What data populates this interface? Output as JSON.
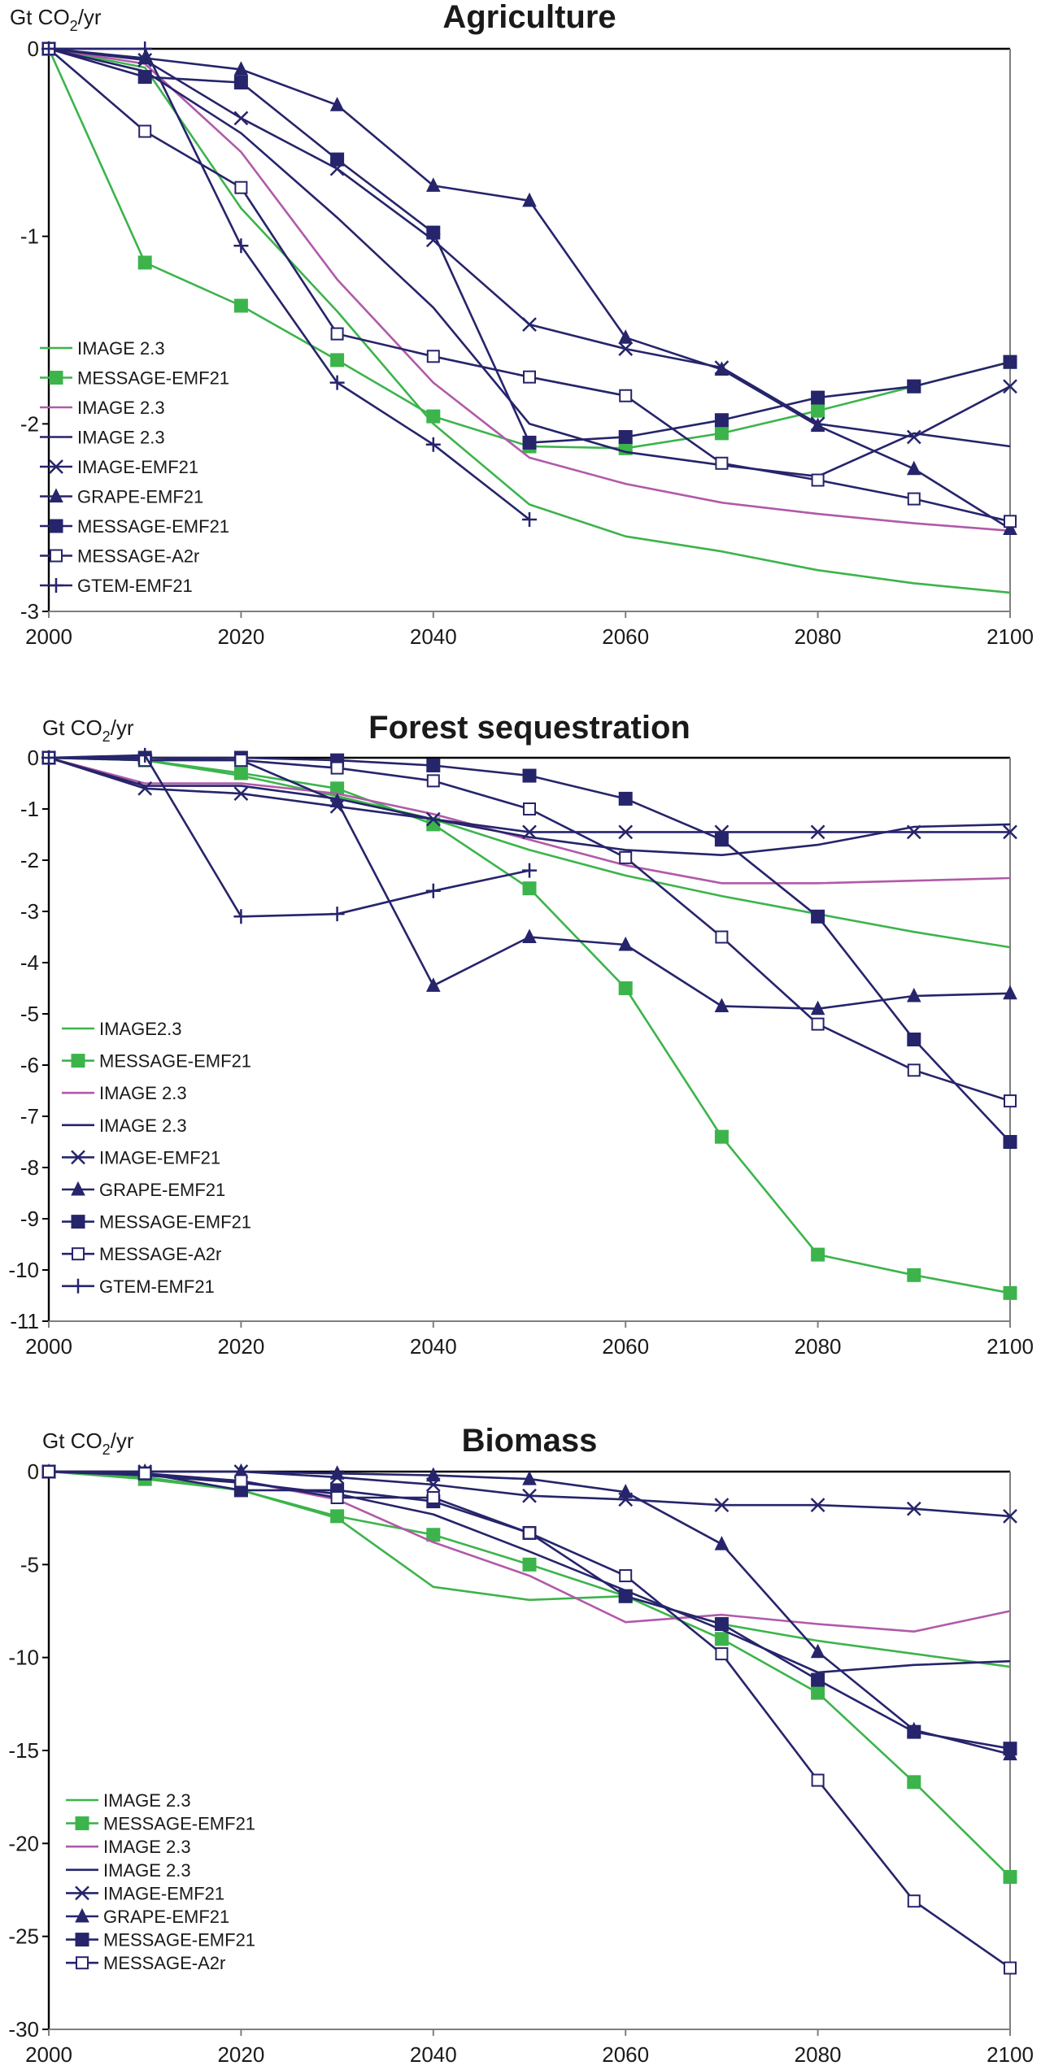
{
  "colors": {
    "green": "#3cb44b",
    "purple": "#b15aa8",
    "navy": "#26246b"
  },
  "chart_data": [
    {
      "type": "line",
      "title": "Agriculture",
      "unit_main": "Gt CO",
      "unit_sub": "2",
      "unit_tail": "/yr",
      "xlim": [
        2000,
        2100
      ],
      "ylim": [
        -3,
        0
      ],
      "xticks": [
        2000,
        2020,
        2040,
        2060,
        2080,
        2100
      ],
      "yticks": [
        0,
        -1,
        -2,
        -3
      ],
      "legend_position": "bottom-left",
      "series": [
        {
          "name": "IMAGE 2.3",
          "color": "#3cb44b",
          "marker": "none",
          "x": [
            2000,
            2010,
            2020,
            2030,
            2040,
            2050,
            2060,
            2070,
            2080,
            2090,
            2100
          ],
          "y": [
            0,
            -0.1,
            -0.85,
            -1.4,
            -2.0,
            -2.43,
            -2.6,
            -2.68,
            -2.78,
            -2.85,
            -2.9
          ]
        },
        {
          "name": "MESSAGE-EMF21",
          "color": "#3cb44b",
          "marker": "filled-square",
          "x": [
            2000,
            2010,
            2020,
            2030,
            2040,
            2050,
            2060,
            2070,
            2080,
            2090,
            2100
          ],
          "y": [
            0,
            -1.14,
            -1.37,
            -1.66,
            -1.96,
            -2.12,
            -2.13,
            -2.05,
            -1.93,
            -1.8,
            -1.67
          ]
        },
        {
          "name": "IMAGE 2.3",
          "color": "#b15aa8",
          "marker": "none",
          "x": [
            2000,
            2010,
            2020,
            2030,
            2040,
            2050,
            2060,
            2070,
            2080,
            2090,
            2100
          ],
          "y": [
            0,
            -0.08,
            -0.55,
            -1.23,
            -1.78,
            -2.18,
            -2.32,
            -2.42,
            -2.48,
            -2.53,
            -2.57
          ]
        },
        {
          "name": "IMAGE 2.3",
          "color": "#26246b",
          "marker": "none",
          "x": [
            2000,
            2010,
            2020,
            2030,
            2040,
            2050,
            2060,
            2070,
            2080,
            2090,
            2100
          ],
          "y": [
            0,
            -0.12,
            -0.45,
            -0.9,
            -1.38,
            -2.0,
            -2.15,
            -2.22,
            -2.28,
            -2.05,
            -2.12
          ]
        },
        {
          "name": "IMAGE-EMF21",
          "color": "#26246b",
          "marker": "x",
          "x": [
            2000,
            2010,
            2020,
            2030,
            2040,
            2050,
            2060,
            2070,
            2080,
            2090,
            2100
          ],
          "y": [
            0,
            -0.06,
            -0.37,
            -0.64,
            -1.02,
            -1.47,
            -1.6,
            -1.7,
            -2.0,
            -2.07,
            -1.8
          ]
        },
        {
          "name": "GRAPE-EMF21",
          "color": "#26246b",
          "marker": "filled-triangle",
          "x": [
            2000,
            2010,
            2020,
            2030,
            2040,
            2050,
            2060,
            2070,
            2080,
            2090,
            2100
          ],
          "y": [
            0,
            -0.05,
            -0.11,
            -0.3,
            -0.73,
            -0.81,
            -1.54,
            -1.71,
            -2.01,
            -2.24,
            -2.56
          ]
        },
        {
          "name": "MESSAGE-EMF21",
          "color": "#26246b",
          "marker": "filled-square",
          "x": [
            2000,
            2010,
            2020,
            2030,
            2040,
            2050,
            2060,
            2070,
            2080,
            2090,
            2100
          ],
          "y": [
            0,
            -0.15,
            -0.18,
            -0.59,
            -0.98,
            -2.1,
            -2.07,
            -1.98,
            -1.86,
            -1.8,
            -1.67
          ]
        },
        {
          "name": "MESSAGE-A2r",
          "color": "#26246b",
          "marker": "open-square",
          "x": [
            2000,
            2010,
            2020,
            2030,
            2040,
            2050,
            2060,
            2070,
            2080,
            2090,
            2100
          ],
          "y": [
            0,
            -0.44,
            -0.74,
            -1.52,
            -1.64,
            -1.75,
            -1.85,
            -2.21,
            -2.3,
            -2.4,
            -2.52
          ]
        },
        {
          "name": "GTEM-EMF21",
          "color": "#26246b",
          "marker": "plus",
          "x": [
            2000,
            2010,
            2020,
            2030,
            2040,
            2050
          ],
          "y": [
            0,
            0,
            -1.05,
            -1.78,
            -2.11,
            -2.51
          ]
        }
      ]
    },
    {
      "type": "line",
      "title": "Forest sequestration",
      "unit_main": "Gt CO",
      "unit_sub": "2",
      "unit_tail": "/yr",
      "xlim": [
        2000,
        2100
      ],
      "ylim": [
        -11,
        0
      ],
      "xticks": [
        2000,
        2020,
        2040,
        2060,
        2080,
        2100
      ],
      "yticks": [
        0,
        -1,
        -2,
        -3,
        -4,
        -5,
        -6,
        -7,
        -8,
        -9,
        -10,
        -11
      ],
      "legend_position": "bottom-left",
      "series": [
        {
          "name": "IMAGE2.3",
          "color": "#3cb44b",
          "marker": "none",
          "x": [
            2000,
            2010,
            2020,
            2030,
            2040,
            2050,
            2060,
            2070,
            2080,
            2090,
            2100
          ],
          "y": [
            0,
            -0.05,
            -0.35,
            -0.75,
            -1.2,
            -1.8,
            -2.3,
            -2.7,
            -3.05,
            -3.4,
            -3.7
          ]
        },
        {
          "name": "MESSAGE-EMF21",
          "color": "#3cb44b",
          "marker": "filled-square",
          "x": [
            2000,
            2010,
            2020,
            2030,
            2040,
            2050,
            2060,
            2070,
            2080,
            2090,
            2100
          ],
          "y": [
            0,
            -0.05,
            -0.3,
            -0.6,
            -1.3,
            -2.55,
            -4.5,
            -7.4,
            -9.7,
            -10.1,
            -10.45
          ]
        },
        {
          "name": "IMAGE 2.3",
          "color": "#b15aa8",
          "marker": "none",
          "x": [
            2000,
            2010,
            2020,
            2030,
            2040,
            2050,
            2060,
            2070,
            2080,
            2090,
            2100
          ],
          "y": [
            0,
            -0.5,
            -0.5,
            -0.7,
            -1.1,
            -1.6,
            -2.1,
            -2.45,
            -2.45,
            -2.4,
            -2.35
          ]
        },
        {
          "name": "IMAGE 2.3",
          "color": "#26246b",
          "marker": "none",
          "x": [
            2000,
            2010,
            2020,
            2030,
            2040,
            2050,
            2060,
            2070,
            2080,
            2090,
            2100
          ],
          "y": [
            0,
            -0.55,
            -0.55,
            -0.8,
            -1.2,
            -1.55,
            -1.8,
            -1.9,
            -1.7,
            -1.35,
            -1.3
          ]
        },
        {
          "name": "IMAGE-EMF21",
          "color": "#26246b",
          "marker": "x",
          "x": [
            2000,
            2010,
            2020,
            2030,
            2040,
            2050,
            2060,
            2070,
            2080,
            2090,
            2100
          ],
          "y": [
            0,
            -0.6,
            -0.7,
            -0.95,
            -1.2,
            -1.45,
            -1.45,
            -1.45,
            -1.45,
            -1.45,
            -1.45
          ]
        },
        {
          "name": "GRAPE-EMF21",
          "color": "#26246b",
          "marker": "filled-triangle",
          "x": [
            2000,
            2010,
            2020,
            2030,
            2040,
            2050,
            2060,
            2070,
            2080,
            2090,
            2100
          ],
          "y": [
            0,
            0,
            -0.05,
            -0.85,
            -4.45,
            -3.5,
            -3.65,
            -4.85,
            -4.9,
            -4.65,
            -4.6
          ]
        },
        {
          "name": "MESSAGE-EMF21",
          "color": "#26246b",
          "marker": "filled-square",
          "x": [
            2000,
            2010,
            2020,
            2030,
            2040,
            2050,
            2060,
            2070,
            2080,
            2090,
            2100
          ],
          "y": [
            0,
            0,
            0,
            -0.05,
            -0.15,
            -0.35,
            -0.8,
            -1.6,
            -3.1,
            -5.5,
            -7.5
          ]
        },
        {
          "name": "MESSAGE-A2r",
          "color": "#26246b",
          "marker": "open-square",
          "x": [
            2000,
            2010,
            2020,
            2030,
            2040,
            2050,
            2060,
            2070,
            2080,
            2090,
            2100
          ],
          "y": [
            0,
            -0.05,
            -0.05,
            -0.2,
            -0.45,
            -1.0,
            -1.95,
            -3.5,
            -5.2,
            -6.1,
            -6.7
          ]
        },
        {
          "name": "GTEM-EMF21",
          "color": "#26246b",
          "marker": "plus",
          "x": [
            2000,
            2010,
            2020,
            2030,
            2040,
            2050
          ],
          "y": [
            0,
            0.05,
            -3.1,
            -3.05,
            -2.6,
            -2.2
          ]
        }
      ]
    },
    {
      "type": "line",
      "title": "Biomass",
      "unit_main": "Gt CO",
      "unit_sub": "2",
      "unit_tail": "/yr",
      "xlim": [
        2000,
        2100
      ],
      "ylim": [
        -30,
        0
      ],
      "xticks": [
        2000,
        2020,
        2040,
        2060,
        2080,
        2100
      ],
      "yticks": [
        0,
        -5,
        -10,
        -15,
        -20,
        -25,
        -30
      ],
      "legend_position": "bottom-left",
      "series": [
        {
          "name": "IMAGE 2.3",
          "color": "#3cb44b",
          "marker": "none",
          "x": [
            2000,
            2010,
            2020,
            2030,
            2040,
            2050,
            2060,
            2070,
            2080,
            2090,
            2100
          ],
          "y": [
            0,
            -0.3,
            -1.0,
            -2.5,
            -6.2,
            -6.9,
            -6.7,
            -8.2,
            -9.1,
            -9.8,
            -10.5
          ]
        },
        {
          "name": "MESSAGE-EMF21",
          "color": "#3cb44b",
          "marker": "filled-square",
          "x": [
            2000,
            2010,
            2020,
            2030,
            2040,
            2050,
            2060,
            2070,
            2080,
            2090,
            2100
          ],
          "y": [
            0,
            -0.4,
            -1.0,
            -2.4,
            -3.4,
            -5.0,
            -6.7,
            -9.0,
            -11.9,
            -16.7,
            -21.8
          ]
        },
        {
          "name": "IMAGE 2.3",
          "color": "#b15aa8",
          "marker": "none",
          "x": [
            2000,
            2010,
            2020,
            2030,
            2040,
            2050,
            2060,
            2070,
            2080,
            2090,
            2100
          ],
          "y": [
            0,
            -0.2,
            -0.5,
            -1.5,
            -3.8,
            -5.6,
            -8.1,
            -7.7,
            -8.2,
            -8.6,
            -7.5
          ]
        },
        {
          "name": "IMAGE 2.3",
          "color": "#26246b",
          "marker": "none",
          "x": [
            2000,
            2010,
            2020,
            2030,
            2040,
            2050,
            2060,
            2070,
            2080,
            2090,
            2100
          ],
          "y": [
            0,
            -0.2,
            -0.6,
            -1.2,
            -2.3,
            -4.3,
            -6.4,
            -8.5,
            -10.8,
            -10.4,
            -10.2
          ]
        },
        {
          "name": "IMAGE-EMF21",
          "color": "#26246b",
          "marker": "x",
          "x": [
            2000,
            2010,
            2020,
            2030,
            2040,
            2050,
            2060,
            2070,
            2080,
            2090,
            2100
          ],
          "y": [
            0,
            0,
            0,
            -0.3,
            -0.7,
            -1.3,
            -1.5,
            -1.8,
            -1.8,
            -2.0,
            -2.4
          ]
        },
        {
          "name": "GRAPE-EMF21",
          "color": "#26246b",
          "marker": "filled-triangle",
          "x": [
            2000,
            2010,
            2020,
            2030,
            2040,
            2050,
            2060,
            2070,
            2080,
            2090,
            2100
          ],
          "y": [
            0,
            0,
            0,
            -0.1,
            -0.2,
            -0.4,
            -1.1,
            -3.9,
            -9.7,
            -13.9,
            -15.2
          ]
        },
        {
          "name": "MESSAGE-EMF21",
          "color": "#26246b",
          "marker": "filled-square",
          "x": [
            2000,
            2010,
            2020,
            2030,
            2040,
            2050,
            2060,
            2070,
            2080,
            2090,
            2100
          ],
          "y": [
            0,
            -0.1,
            -1.0,
            -1.0,
            -1.6,
            -3.3,
            -6.7,
            -8.2,
            -11.2,
            -14.0,
            -14.9
          ]
        },
        {
          "name": "MESSAGE-A2r",
          "color": "#26246b",
          "marker": "open-square",
          "x": [
            2000,
            2010,
            2020,
            2030,
            2040,
            2050,
            2060,
            2070,
            2080,
            2090,
            2100
          ],
          "y": [
            0,
            -0.1,
            -0.5,
            -1.4,
            -1.4,
            -3.3,
            -5.6,
            -9.8,
            -16.6,
            -23.1,
            -26.7
          ]
        }
      ]
    }
  ]
}
